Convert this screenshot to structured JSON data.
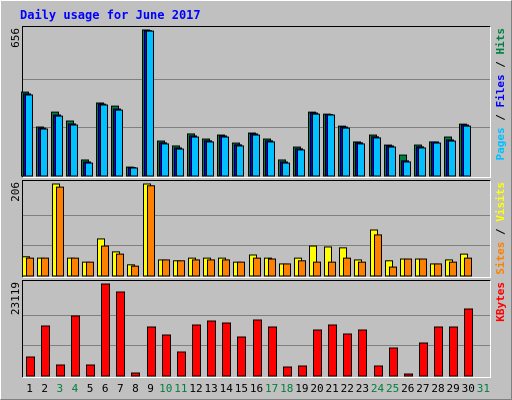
{
  "chart_data": {
    "type": "bar",
    "title": "Daily usage for June 2017",
    "title_color": "#0000ff",
    "categories": [
      "1",
      "2",
      "3",
      "4",
      "5",
      "6",
      "7",
      "8",
      "9",
      "10",
      "11",
      "12",
      "13",
      "14",
      "15",
      "16",
      "17",
      "18",
      "19",
      "20",
      "21",
      "22",
      "23",
      "24",
      "25",
      "26",
      "27",
      "28",
      "29",
      "30",
      "31"
    ],
    "category_colors": [
      "#000000",
      "#000000",
      "#008040",
      "#008040",
      "#000000",
      "#000000",
      "#000000",
      "#000000",
      "#000000",
      "#008040",
      "#008040",
      "#000000",
      "#000000",
      "#000000",
      "#000000",
      "#000000",
      "#008040",
      "#008040",
      "#000000",
      "#000000",
      "#000000",
      "#000000",
      "#000000",
      "#008040",
      "#008040",
      "#000000",
      "#000000",
      "#000000",
      "#000000",
      "#000000",
      "#008040"
    ],
    "legend_separator": " / ",
    "panels": [
      {
        "ylim": [
          0,
          656
        ],
        "yticks": [
          656
        ],
        "series": [
          {
            "name": "Hits",
            "color": "#008040",
            "values": [
              377,
              220,
              287,
              247,
              72,
              328,
              314,
              40,
              656,
              157,
              135,
              189,
              166,
              184,
              148,
              193,
              166,
              72,
              130,
              287,
              278,
              224,
              153,
              184,
              139,
              94,
              139,
              153,
              175,
              233,
              0
            ]
          },
          {
            "name": "Files",
            "color": "#0000ff",
            "values": [
              369,
              215,
              274,
              234,
              63,
              323,
              301,
              38,
              653,
              149,
              126,
              180,
              158,
              180,
              140,
              189,
              158,
              63,
              122,
              283,
              276,
              220,
              149,
              176,
              135,
              68,
              131,
              153,
              162,
              229,
              0
            ]
          },
          {
            "name": "Pages",
            "color": "#00c0ff",
            "values": [
              364,
              211,
              269,
              229,
              58,
              319,
              296,
              36,
              651,
              144,
              121,
              175,
              153,
              175,
              135,
              184,
              153,
              58,
              117,
              278,
              274,
              215,
              144,
              171,
              130,
              63,
              126,
              148,
              157,
              224,
              0
            ]
          }
        ]
      },
      {
        "ylim": [
          0,
          206
        ],
        "yticks": [
          206
        ],
        "series": [
          {
            "name": "Visits",
            "color": "#ffff00",
            "values": [
              43,
              40,
              206,
              40,
              31,
              83,
              54,
              25,
              206,
              36,
              34,
              40,
              40,
              40,
              31,
              47,
              40,
              27,
              40,
              67,
              65,
              63,
              36,
              103,
              34,
              38,
              38,
              27,
              36,
              49,
              0
            ]
          },
          {
            "name": "Sites",
            "color": "#ff8000",
            "values": [
              40,
              40,
              199,
              40,
              31,
              67,
              49,
              22,
              202,
              36,
              34,
              36,
              36,
              36,
              31,
              40,
              38,
              27,
              34,
              31,
              31,
              40,
              31,
              92,
              20,
              38,
              38,
              27,
              31,
              40,
              0
            ]
          }
        ]
      },
      {
        "ylim": [
          0,
          23119
        ],
        "yticks": [
          23119
        ],
        "series": [
          {
            "name": "KBytes",
            "color": "#ff0000",
            "values": [
              4775,
              12565,
              2765,
              15078,
              2765,
              23119,
              21108,
              754,
              12314,
              10303,
              6031,
              12816,
              13821,
              13319,
              9800,
              14072,
              12314,
              2262,
              2513,
              11560,
              12816,
              10555,
              11560,
              2513,
              7036,
              503,
              8293,
              12314,
              12314,
              16837,
              0
            ]
          }
        ]
      }
    ]
  }
}
